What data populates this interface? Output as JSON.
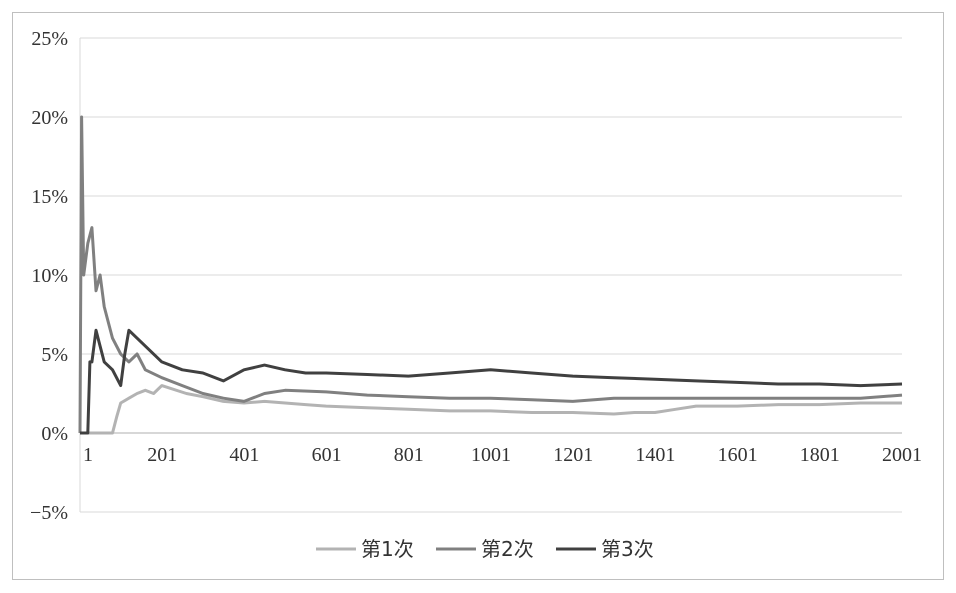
{
  "chart_data": {
    "type": "line",
    "title": "",
    "xlabel": "",
    "ylabel": "",
    "xlim": [
      1,
      2001
    ],
    "ylim": [
      -0.05,
      0.25
    ],
    "y_ticks": [
      -0.05,
      0,
      0.05,
      0.1,
      0.15,
      0.2,
      0.25
    ],
    "y_tick_labels": [
      "−5%",
      "0%",
      "5%",
      "10%",
      "15%",
      "20%",
      "25%"
    ],
    "x_ticks": [
      1,
      201,
      401,
      601,
      801,
      1001,
      1201,
      1401,
      1601,
      1801,
      2001
    ],
    "x_tick_labels": [
      "1",
      "201",
      "401",
      "601",
      "801",
      "1001",
      "1201",
      "1401",
      "1601",
      "1801",
      "2001"
    ],
    "grid": "horizontal",
    "legend_position": "bottom",
    "series": [
      {
        "name": "第1次",
        "color": "#b3b3b3",
        "x": [
          1,
          80,
          90,
          100,
          120,
          140,
          160,
          180,
          200,
          260,
          300,
          350,
          400,
          450,
          500,
          550,
          600,
          700,
          800,
          900,
          1000,
          1100,
          1200,
          1300,
          1350,
          1400,
          1450,
          1500,
          1600,
          1700,
          1800,
          1900,
          2001
        ],
        "values": [
          0,
          0,
          0.01,
          0.019,
          0.022,
          0.025,
          0.027,
          0.025,
          0.03,
          0.025,
          0.023,
          0.02,
          0.019,
          0.02,
          0.019,
          0.018,
          0.017,
          0.016,
          0.015,
          0.014,
          0.014,
          0.013,
          0.013,
          0.012,
          0.013,
          0.013,
          0.015,
          0.017,
          0.017,
          0.018,
          0.018,
          0.019,
          0.019
        ]
      },
      {
        "name": "第2次",
        "color": "#808080",
        "x": [
          1,
          5,
          10,
          20,
          30,
          40,
          50,
          60,
          80,
          100,
          120,
          140,
          160,
          200,
          250,
          300,
          350,
          400,
          450,
          500,
          600,
          700,
          800,
          900,
          1000,
          1100,
          1200,
          1300,
          1400,
          1500,
          1600,
          1700,
          1800,
          1900,
          2001
        ],
        "values": [
          0,
          0.2,
          0.1,
          0.12,
          0.13,
          0.09,
          0.1,
          0.08,
          0.06,
          0.05,
          0.045,
          0.05,
          0.04,
          0.035,
          0.03,
          0.025,
          0.022,
          0.02,
          0.025,
          0.027,
          0.026,
          0.024,
          0.023,
          0.022,
          0.022,
          0.021,
          0.02,
          0.022,
          0.022,
          0.022,
          0.022,
          0.022,
          0.022,
          0.022,
          0.024
        ]
      },
      {
        "name": "第3次",
        "color": "#404040",
        "x": [
          1,
          20,
          25,
          30,
          40,
          50,
          60,
          80,
          100,
          110,
          120,
          140,
          160,
          200,
          250,
          300,
          350,
          400,
          450,
          500,
          550,
          600,
          700,
          800,
          900,
          950,
          1000,
          1100,
          1200,
          1300,
          1400,
          1500,
          1600,
          1700,
          1800,
          1900,
          2001
        ],
        "values": [
          0,
          0,
          0.045,
          0.045,
          0.065,
          0.055,
          0.045,
          0.04,
          0.03,
          0.05,
          0.065,
          0.06,
          0.055,
          0.045,
          0.04,
          0.038,
          0.033,
          0.04,
          0.043,
          0.04,
          0.038,
          0.038,
          0.037,
          0.036,
          0.038,
          0.039,
          0.04,
          0.038,
          0.036,
          0.035,
          0.034,
          0.033,
          0.032,
          0.031,
          0.031,
          0.03,
          0.031
        ]
      }
    ]
  }
}
